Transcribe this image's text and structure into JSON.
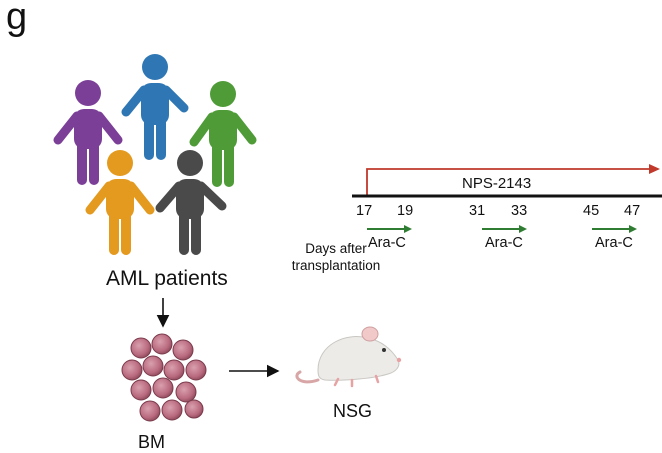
{
  "panel_label": "g",
  "patients_label": "AML patients",
  "bm_label": "BM",
  "mouse_label": "NSG",
  "drug_label": "NPS-2143",
  "timeline_caption": "Days after transplantation",
  "timeline_days": [
    "17",
    "19",
    "31",
    "33",
    "45",
    "47"
  ],
  "treatment_label": "Ara-C",
  "colors": {
    "person_purple": "#7b3f98",
    "person_blue": "#2f77b4",
    "person_green": "#4e9b38",
    "person_orange": "#e39a1f",
    "person_gray": "#4a4a4a",
    "cell_fill": "#b96a7e",
    "drug_arrow": "#c0392b",
    "treatment_arrow": "#2e7d32",
    "mouse_body": "#ecebe8"
  }
}
